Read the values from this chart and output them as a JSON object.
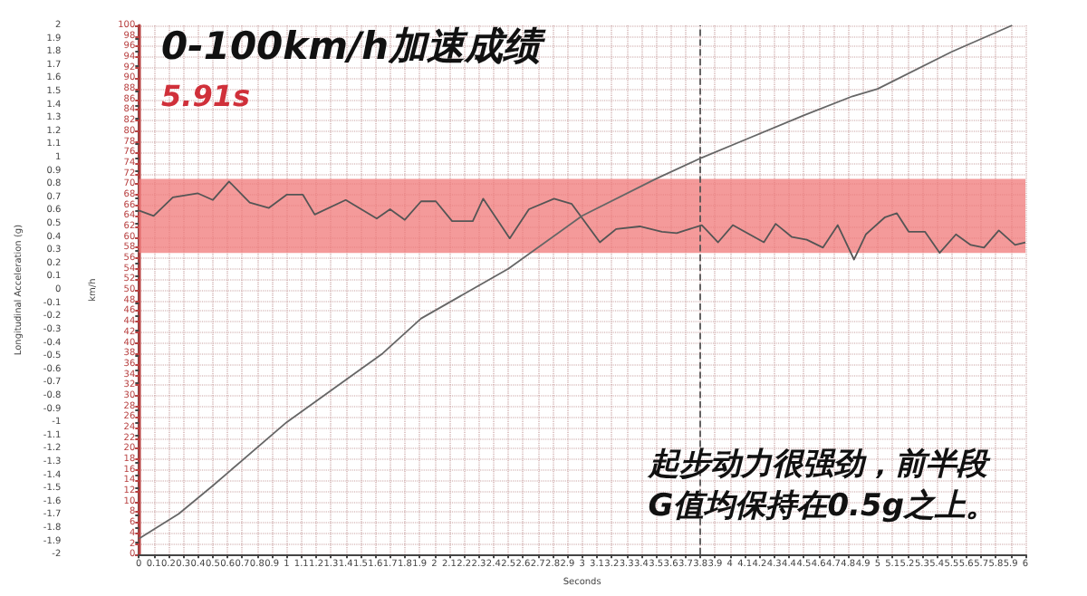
{
  "chart_data": {
    "type": "line",
    "title": "0-100km/h加速成绩",
    "subtitle": "5.91s",
    "xlabel": "Seconds",
    "ylabel": "Longitudinal Acceleration (g)",
    "y2label": "km/h",
    "annotations": [
      "起步动力很强劲，前半段\nG值均保持在0.5g之上。"
    ],
    "series": [
      {
        "color": "#555555",
        "x": [
          0,
          0.1,
          0.23,
          0.4,
          0.5,
          0.61,
          0.75,
          0.88,
          1.0,
          1.11,
          1.19,
          1.4,
          1.61,
          1.7,
          1.8,
          1.91,
          2.01,
          2.12,
          2.26,
          2.33,
          2.51,
          2.64,
          2.81,
          2.93,
          3.12,
          3.23,
          3.39,
          3.54,
          3.64,
          3.81,
          3.92,
          4.02,
          4.23,
          4.31,
          4.42,
          4.52,
          4.63,
          4.73,
          4.84,
          4.92,
          5.05,
          5.13,
          5.21,
          5.32,
          5.42,
          5.53,
          5.63,
          5.72,
          5.82,
          5.93,
          6.0
        ],
        "values": [
          0.6,
          0.56,
          0.7,
          0.73,
          0.68,
          0.82,
          0.66,
          0.62,
          0.72,
          0.72,
          0.57,
          0.68,
          0.54,
          0.61,
          0.53,
          0.67,
          0.67,
          0.52,
          0.52,
          0.69,
          0.39,
          0.61,
          0.69,
          0.65,
          0.36,
          0.46,
          0.48,
          0.44,
          0.43,
          0.49,
          0.36,
          0.49,
          0.36,
          0.5,
          0.4,
          0.38,
          0.32,
          0.49,
          0.23,
          0.42,
          0.55,
          0.58,
          0.44,
          0.44,
          0.28,
          0.42,
          0.34,
          0.32,
          0.45,
          0.34,
          0.36
        ]
      },
      {
        "color": "#666666",
        "axis": "y2",
        "x": [
          0,
          0.27,
          0.5,
          1.0,
          1.5,
          1.65,
          1.91,
          2.5,
          3.0,
          3.5,
          3.81,
          4.07,
          4.5,
          4.83,
          5.0,
          5.5,
          5.91
        ],
        "values": [
          3,
          7.7,
          13,
          25,
          35,
          38,
          44.6,
          54,
          64,
          71,
          75,
          78,
          83,
          86.6,
          88,
          95,
          100
        ]
      }
    ],
    "xlim": [
      0,
      6
    ],
    "xticks": [
      0,
      0.1,
      0.2,
      0.3,
      0.4,
      0.5,
      0.6,
      0.7,
      0.8,
      0.9,
      1,
      1.1,
      1.2,
      1.3,
      1.4,
      1.5,
      1.6,
      1.7,
      1.8,
      1.9,
      2,
      2.1,
      2.2,
      2.3,
      2.4,
      2.5,
      2.6,
      2.7,
      2.8,
      2.9,
      3,
      3.1,
      3.2,
      3.3,
      3.4,
      3.5,
      3.6,
      3.7,
      3.8,
      3.9,
      4,
      4.1,
      4.2,
      4.3,
      4.4,
      4.5,
      4.6,
      4.7,
      4.8,
      4.9,
      5,
      5.1,
      5.2,
      5.3,
      5.4,
      5.5,
      5.6,
      5.7,
      5.8,
      5.9,
      6
    ],
    "ylim": [
      -2,
      2
    ],
    "yticks": [
      -2,
      -1.9,
      -1.8,
      -1.7,
      -1.6,
      -1.5,
      -1.4,
      -1.3,
      -1.2,
      -1.1,
      -1,
      -0.9,
      -0.8,
      -0.7,
      -0.6,
      -0.5,
      -0.4,
      -0.3,
      -0.2,
      -0.1,
      0,
      0.1,
      0.2,
      0.3,
      0.4,
      0.5,
      0.6,
      0.7,
      0.8,
      0.9,
      1,
      1.1,
      1.2,
      1.3,
      1.4,
      1.5,
      1.6,
      1.7,
      1.8,
      1.9,
      2
    ],
    "y2lim": [
      0,
      100
    ],
    "y2ticks": [
      0,
      2,
      4,
      6,
      8,
      10,
      12,
      14,
      16,
      18,
      20,
      22,
      24,
      26,
      28,
      30,
      32,
      34,
      36,
      38,
      40,
      42,
      44,
      46,
      48,
      50,
      52,
      54,
      56,
      58,
      60,
      62,
      64,
      66,
      68,
      70,
      72,
      74,
      76,
      78,
      80,
      82,
      84,
      86,
      88,
      90,
      92,
      94,
      96,
      98,
      100
    ],
    "ref_lines": [
      {
        "axis": "x",
        "value": 3.8,
        "line_style": "dashed",
        "color": "#555555"
      }
    ],
    "bands": [
      {
        "axis": "y2",
        "from": 57,
        "to": 71,
        "color": "#f07878"
      }
    ],
    "grid": true,
    "marker": "none",
    "line_style": "solid"
  }
}
